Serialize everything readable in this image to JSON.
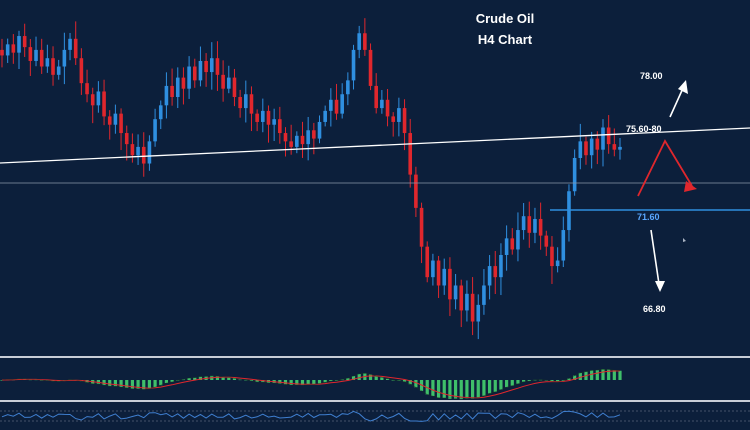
{
  "title": {
    "line1": "Crude Oil",
    "line2": "H4 Chart"
  },
  "levels": {
    "target_up": "78.00",
    "resistance": "75.60-80",
    "support": "71.60",
    "target_down": "66.80"
  },
  "colors": {
    "background": "#0c1f3b",
    "bull_candle": "#2f8fe0",
    "bear_candle": "#e0272d",
    "trendline": "#ffffff",
    "support_line": "#2f8fe0",
    "support_label": "#5aa8ff",
    "projection_red": "#e0272d",
    "arrow_white": "#ffffff",
    "histogram": "#3fbf6a",
    "signal_line": "#e0272d",
    "oscillator_line": "#3f7fd0"
  },
  "chart_data": {
    "type": "candlestick",
    "series": [
      {
        "name": "",
        "close": [
          77.2,
          77.6,
          77.3,
          77.9,
          77.5,
          77.0,
          77.4,
          76.8,
          77.1,
          76.5,
          76.8,
          77.4,
          77.8,
          77.1,
          76.2,
          75.8,
          75.4,
          75.9,
          75.0,
          74.7,
          75.1,
          74.4,
          74.0,
          73.6,
          73.9,
          73.3,
          74.1,
          74.9,
          75.4,
          76.1,
          75.7,
          76.4,
          76.0,
          76.8,
          76.3,
          77.0,
          76.6,
          77.1,
          76.5,
          76.0,
          76.4,
          75.7,
          75.3,
          75.8,
          75.1,
          74.8,
          75.2,
          74.7,
          74.9,
          74.4,
          74.1,
          73.9,
          74.3,
          74.0,
          74.5,
          74.2,
          74.8,
          75.2,
          75.6,
          75.1,
          75.8,
          76.3,
          77.4,
          78.0,
          77.4,
          76.1,
          75.3,
          75.6,
          75.0,
          74.8,
          75.3,
          74.4,
          72.9,
          71.7,
          70.3,
          69.2,
          69.8,
          68.9,
          69.5,
          68.4,
          68.9,
          68.0,
          68.6,
          67.6,
          68.2,
          68.9,
          69.6,
          69.2,
          70.0,
          70.6,
          70.2,
          70.9,
          71.4,
          70.8,
          71.3,
          70.7,
          70.3,
          69.6,
          69.8,
          70.9,
          72.3,
          73.5,
          74.1,
          73.6,
          74.2,
          73.8,
          74.6,
          74.0,
          73.8,
          73.9
        ]
      }
    ],
    "levels": [
      {
        "price": 78.0,
        "label": "78.00"
      },
      {
        "price": 75.7,
        "label": "75.60-80"
      },
      {
        "price": 71.6,
        "label": "71.60"
      },
      {
        "price": 66.8,
        "label": "66.80"
      }
    ],
    "ylim": [
      66.5,
      79.2
    ],
    "xlabel": "",
    "ylabel": "",
    "grid": false,
    "legend": "none"
  }
}
